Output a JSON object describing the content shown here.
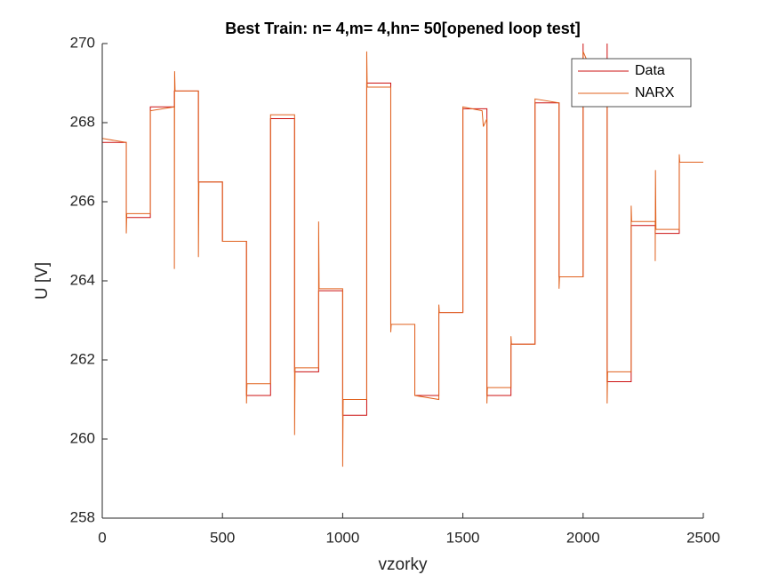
{
  "chart_data": {
    "type": "line",
    "title": "Best Train: n= 4,m= 4,hn= 50[opened loop test]",
    "xlabel": "vzorky",
    "ylabel": "U [V]",
    "xlim": [
      0,
      2500
    ],
    "xticks": [
      0,
      500,
      1000,
      1500,
      2000,
      2500
    ],
    "ylim": [
      258,
      270
    ],
    "yticks": [
      258,
      260,
      262,
      264,
      266,
      268,
      270
    ],
    "legend": "top-right",
    "series": [
      {
        "name": "Data",
        "color": "#cc1010",
        "x": [
          0,
          100,
          100,
          200,
          200,
          300,
          300,
          400,
          400,
          500,
          500,
          600,
          600,
          700,
          700,
          800,
          800,
          900,
          900,
          1000,
          1000,
          1100,
          1100,
          1200,
          1200,
          1300,
          1300,
          1400,
          1400,
          1500,
          1500,
          1600,
          1600,
          1700,
          1700,
          1800,
          1800,
          1900,
          1900,
          2000,
          2000,
          2100,
          2100,
          2200,
          2200,
          2300,
          2300,
          2400,
          2400,
          2500
        ],
        "values": [
          267.5,
          267.5,
          265.6,
          265.6,
          268.4,
          268.4,
          268.8,
          268.8,
          266.5,
          266.5,
          265.0,
          265.0,
          261.1,
          261.1,
          268.1,
          268.1,
          261.7,
          261.7,
          263.75,
          263.75,
          260.6,
          260.6,
          269.0,
          269.0,
          262.9,
          262.9,
          261.1,
          261.1,
          263.2,
          263.2,
          268.35,
          268.35,
          261.1,
          261.1,
          262.4,
          262.4,
          268.5,
          268.5,
          264.1,
          264.1,
          271,
          271,
          261.45,
          261.45,
          265.4,
          265.4,
          265.2,
          265.2,
          267.0,
          267.0
        ]
      },
      {
        "name": "NARX",
        "color": "#e0601c",
        "x": [
          0,
          100,
          100,
          102,
          200,
          200,
          300,
          300,
          301,
          303,
          400,
          400,
          402,
          500,
          500,
          600,
          600,
          602,
          700,
          700,
          800,
          800,
          802,
          900,
          900,
          902,
          1000,
          1000,
          1002,
          1100,
          1100,
          1102,
          1200,
          1200,
          1202,
          1300,
          1300,
          1400,
          1400,
          1402,
          1500,
          1500,
          1580,
          1585,
          1600,
          1600,
          1602,
          1700,
          1700,
          1702,
          1800,
          1800,
          1900,
          1900,
          1902,
          2000,
          2000,
          2100,
          2100,
          2102,
          2200,
          2200,
          2202,
          2300,
          2300,
          2301,
          2303,
          2400,
          2400,
          2402,
          2500
        ],
        "values": [
          267.6,
          267.5,
          265.2,
          265.7,
          265.7,
          268.3,
          268.4,
          264.3,
          269.3,
          268.8,
          268.8,
          264.6,
          266.5,
          266.5,
          265.0,
          265.0,
          260.9,
          261.4,
          261.4,
          268.2,
          268.2,
          260.1,
          261.8,
          261.8,
          265.5,
          263.8,
          263.8,
          259.3,
          261.0,
          261.0,
          269.8,
          268.9,
          268.9,
          262.7,
          262.9,
          262.9,
          261.1,
          261.0,
          263.4,
          263.2,
          263.2,
          268.4,
          268.3,
          267.9,
          268.1,
          260.9,
          261.3,
          261.3,
          262.6,
          262.4,
          262.4,
          268.6,
          268.5,
          263.8,
          264.1,
          264.1,
          269.8,
          268.4,
          260.9,
          261.7,
          261.7,
          265.9,
          265.5,
          265.5,
          264.5,
          266.8,
          265.3,
          265.3,
          267.2,
          267.0,
          267.0
        ]
      }
    ]
  }
}
